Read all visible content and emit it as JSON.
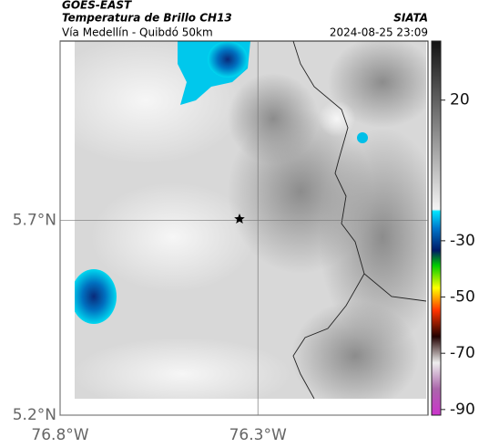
{
  "header": {
    "title": "GOES-EAST",
    "subtitle": "Temperatura de Brillo CH13",
    "region": "Vía Medellín - Quibdó 50km",
    "source": "SIATA",
    "datetime": "2024-08-25 23:09"
  },
  "axes": {
    "ylim": [
      5.2,
      6.16
    ],
    "xlim": [
      -76.8,
      -75.87
    ],
    "yticks": [
      {
        "value": 5.2,
        "label": "5.2°N"
      },
      {
        "value": 5.7,
        "label": "5.7°N"
      }
    ],
    "xticks": [
      {
        "value": -76.8,
        "label": "76.8°W"
      },
      {
        "value": -76.3,
        "label": "76.3°W"
      }
    ]
  },
  "colorbar": {
    "lim": [
      41,
      -92
    ],
    "ticks": [
      20,
      -30,
      -50,
      -70,
      -90
    ]
  }
}
